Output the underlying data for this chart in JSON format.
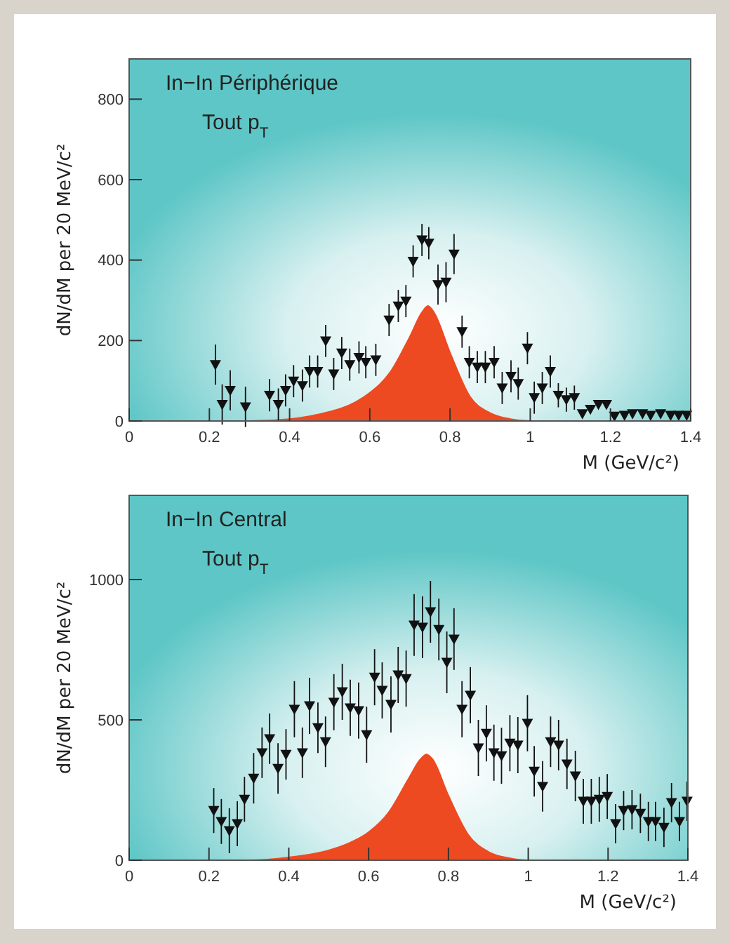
{
  "chart_data": [
    {
      "type": "scatter",
      "title": "In−In Périphérique",
      "subtitle": "Tout p$_{T}$",
      "xlabel": "M (GeV/c²)",
      "ylabel": "dN/dM per 20 MeV/c²",
      "xlim": [
        0,
        1.4
      ],
      "ylim": [
        0,
        900
      ],
      "xticks": [
        0,
        0.2,
        0.4,
        0.6,
        0.8,
        1,
        1.2,
        1.4
      ],
      "yticks": [
        0,
        200,
        400,
        600,
        800
      ],
      "grid": false,
      "series": [
        {
          "type": "area",
          "color": "#ee4a22",
          "x": [
            0,
            0.3,
            0.4,
            0.45,
            0.5,
            0.55,
            0.6,
            0.65,
            0.7,
            0.73,
            0.745,
            0.76,
            0.8,
            0.85,
            0.9,
            0.95,
            1.0,
            1.4
          ],
          "values": [
            0,
            0,
            5,
            12,
            23,
            40,
            70,
            120,
            210,
            270,
            286,
            270,
            170,
            60,
            20,
            5,
            0,
            0
          ]
        },
        {
          "color": "#111111",
          "marker": "triangle",
          "x": [
            0.215,
            0.232,
            0.252,
            0.29,
            0.35,
            0.372,
            0.39,
            0.41,
            0.432,
            0.45,
            0.47,
            0.49,
            0.51,
            0.53,
            0.55,
            0.573,
            0.59,
            0.615,
            0.648,
            0.671,
            0.69,
            0.708,
            0.73,
            0.747,
            0.77,
            0.79,
            0.81,
            0.83,
            0.848,
            0.868,
            0.888,
            0.91,
            0.93,
            0.952,
            0.97,
            0.993,
            1.01,
            1.03,
            1.05,
            1.07,
            1.09,
            1.11,
            1.13,
            1.15,
            1.17,
            1.19,
            1.21,
            1.235,
            1.255,
            1.28,
            1.3,
            1.325,
            1.35,
            1.37,
            1.39
          ],
          "values": [
            140,
            41,
            76,
            35,
            64,
            41,
            76,
            99,
            88,
            123,
            123,
            199,
            117,
            169,
            140,
            158,
            146,
            152,
            251,
            286,
            298,
            397,
            450,
            442,
            339,
            345,
            415,
            222,
            146,
            134,
            134,
            146,
            82,
            111,
            93,
            181,
            58,
            82,
            123,
            64,
            53,
            58,
            18,
            29,
            41,
            41,
            12,
            14,
            18,
            18,
            14,
            18,
            14,
            14,
            14
          ],
          "errors": [
            50,
            50,
            50,
            50,
            40,
            40,
            40,
            40,
            40,
            40,
            40,
            40,
            40,
            40,
            40,
            40,
            40,
            40,
            40,
            40,
            40,
            40,
            40,
            40,
            50,
            50,
            50,
            40,
            40,
            40,
            40,
            40,
            40,
            40,
            40,
            40,
            40,
            40,
            40,
            30,
            30,
            30,
            null,
            null,
            null,
            null,
            null,
            null,
            null,
            null,
            null,
            null,
            null,
            null,
            null
          ]
        }
      ]
    },
    {
      "type": "scatter",
      "title": "In−In Central",
      "subtitle": "Tout p$_{T}$",
      "xlabel": "M (GeV/c²)",
      "ylabel": "dN/dM per 20 MeV/c²",
      "xlim": [
        0,
        1.4
      ],
      "ylim": [
        0,
        1300
      ],
      "xticks": [
        0,
        0.2,
        0.4,
        0.6,
        0.8,
        1,
        1.2,
        1.4
      ],
      "yticks": [
        0,
        500,
        1000
      ],
      "grid": false,
      "series": [
        {
          "type": "area",
          "color": "#ee4a22",
          "x": [
            0,
            0.3,
            0.4,
            0.5,
            0.55,
            0.6,
            0.65,
            0.7,
            0.73,
            0.745,
            0.76,
            0.8,
            0.85,
            0.9,
            0.95,
            1.0,
            1.4
          ],
          "values": [
            0,
            0,
            10,
            35,
            60,
            100,
            170,
            290,
            360,
            377,
            360,
            230,
            90,
            30,
            8,
            0,
            0
          ]
        },
        {
          "color": "#111111",
          "marker": "triangle",
          "x": [
            0.212,
            0.231,
            0.251,
            0.271,
            0.289,
            0.312,
            0.333,
            0.352,
            0.373,
            0.393,
            0.414,
            0.434,
            0.452,
            0.473,
            0.492,
            0.513,
            0.534,
            0.554,
            0.575,
            0.595,
            0.615,
            0.634,
            0.656,
            0.674,
            0.694,
            0.714,
            0.735,
            0.755,
            0.776,
            0.796,
            0.814,
            0.834,
            0.855,
            0.875,
            0.895,
            0.914,
            0.933,
            0.954,
            0.974,
            0.998,
            1.015,
            1.036,
            1.056,
            1.076,
            1.097,
            1.118,
            1.138,
            1.158,
            1.178,
            1.198,
            1.219,
            1.239,
            1.26,
            1.281,
            1.301,
            1.319,
            1.34,
            1.359,
            1.379,
            1.398
          ],
          "values": [
            177,
            138,
            105,
            130,
            217,
            292,
            383,
            433,
            327,
            377,
            538,
            383,
            550,
            472,
            422,
            563,
            600,
            543,
            533,
            447,
            652,
            605,
            555,
            660,
            647,
            838,
            830,
            885,
            822,
            705,
            788,
            538,
            588,
            400,
            452,
            383,
            372,
            417,
            410,
            488,
            317,
            263,
            422,
            410,
            343,
            300,
            210,
            210,
            217,
            227,
            130,
            177,
            180,
            167,
            138,
            138,
            117,
            205,
            138,
            210
          ],
          "errors": [
            80,
            80,
            80,
            80,
            80,
            90,
            90,
            90,
            90,
            90,
            100,
            90,
            100,
            90,
            90,
            100,
            100,
            100,
            100,
            100,
            100,
            100,
            100,
            100,
            100,
            110,
            110,
            110,
            110,
            110,
            110,
            100,
            100,
            100,
            100,
            100,
            100,
            100,
            100,
            100,
            90,
            90,
            90,
            90,
            90,
            90,
            80,
            80,
            80,
            80,
            70,
            70,
            70,
            70,
            70,
            70,
            70,
            70,
            70,
            70
          ]
        }
      ]
    }
  ]
}
